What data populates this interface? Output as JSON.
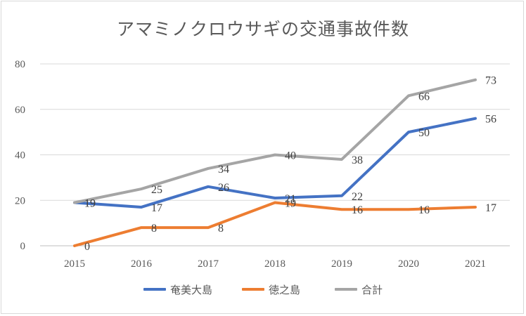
{
  "chart_data": {
    "type": "line",
    "title": "アマミノクロウサギの交通事故件数",
    "categories": [
      "2015",
      "2016",
      "2017",
      "2018",
      "2019",
      "2020",
      "2021"
    ],
    "series": [
      {
        "name": "奄美大島",
        "color": "#4472c4",
        "values": [
          19,
          17,
          26,
          21,
          22,
          50,
          56
        ]
      },
      {
        "name": "徳之島",
        "color": "#ed7d31",
        "values": [
          0,
          8,
          8,
          19,
          16,
          16,
          17
        ]
      },
      {
        "name": "合計",
        "color": "#a5a5a5",
        "values": [
          19,
          25,
          34,
          40,
          38,
          66,
          73
        ]
      }
    ],
    "ylim": [
      0,
      80
    ],
    "yticks": [
      0,
      20,
      40,
      60,
      80
    ],
    "grid": true,
    "legend": "bottom",
    "data_labels": true
  }
}
